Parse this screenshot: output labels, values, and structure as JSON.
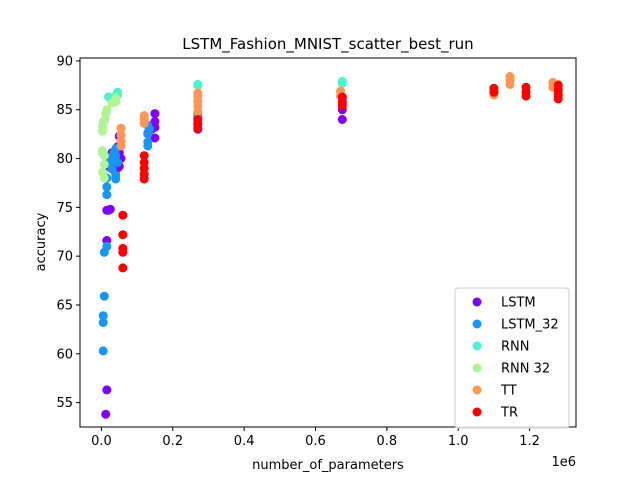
{
  "chart_data": {
    "type": "scatter",
    "title": "LSTM_Fashion_MNIST_scatter_best_run",
    "xlabel": "number_of_parameters",
    "ylabel": "accuracy",
    "x_offset_label": "1e6",
    "xlim": [
      -0.06,
      1.33
    ],
    "ylim": [
      52.5,
      90.3
    ],
    "x_ticks": [
      0.0,
      0.2,
      0.4,
      0.6,
      0.8,
      1.0,
      1.2
    ],
    "x_tick_labels": [
      "0.0",
      "0.2",
      "0.4",
      "0.6",
      "0.8",
      "1.0",
      "1.2"
    ],
    "y_ticks": [
      55,
      60,
      65,
      70,
      75,
      80,
      85,
      90
    ],
    "y_tick_labels": [
      "55",
      "60",
      "65",
      "70",
      "75",
      "80",
      "85",
      "90"
    ],
    "grid": false,
    "legend_position": "lower-right",
    "series": [
      {
        "name": "LSTM",
        "color": "#8000ff",
        "points": [
          [
            0.012,
            53.8
          ],
          [
            0.015,
            56.3
          ],
          [
            0.015,
            71.6
          ],
          [
            0.015,
            74.7
          ],
          [
            0.02,
            74.7
          ],
          [
            0.025,
            74.8
          ],
          [
            0.02,
            79.2
          ],
          [
            0.025,
            79.6
          ],
          [
            0.03,
            80.2
          ],
          [
            0.03,
            80.6
          ],
          [
            0.035,
            80.0
          ],
          [
            0.04,
            79.4
          ],
          [
            0.045,
            79.0
          ],
          [
            0.05,
            79.2
          ],
          [
            0.05,
            80.6
          ],
          [
            0.045,
            81.2
          ],
          [
            0.05,
            82.3
          ],
          [
            0.055,
            80.0
          ],
          [
            0.15,
            82.1
          ],
          [
            0.15,
            83.2
          ],
          [
            0.15,
            83.8
          ],
          [
            0.15,
            84.6
          ],
          [
            0.13,
            82.6
          ],
          [
            0.14,
            83.0
          ],
          [
            0.27,
            83.0
          ],
          [
            0.27,
            83.5
          ],
          [
            0.27,
            84.1
          ],
          [
            0.27,
            84.6
          ],
          [
            0.675,
            84.0
          ],
          [
            0.675,
            85.0
          ],
          [
            0.675,
            85.6
          ],
          [
            0.675,
            86.2
          ]
        ]
      },
      {
        "name": "LSTM_32",
        "color": "#1996f3",
        "points": [
          [
            0.005,
            60.3
          ],
          [
            0.005,
            63.2
          ],
          [
            0.005,
            63.9
          ],
          [
            0.008,
            65.9
          ],
          [
            0.008,
            70.4
          ],
          [
            0.015,
            71.0
          ],
          [
            0.015,
            76.3
          ],
          [
            0.015,
            77.1
          ],
          [
            0.015,
            78.0
          ],
          [
            0.02,
            79.5
          ],
          [
            0.025,
            80.1
          ],
          [
            0.03,
            79.6
          ],
          [
            0.03,
            78.9
          ],
          [
            0.04,
            77.9
          ],
          [
            0.04,
            78.3
          ],
          [
            0.045,
            79.6
          ],
          [
            0.04,
            80.3
          ],
          [
            0.04,
            81.0
          ],
          [
            0.035,
            80.6
          ],
          [
            0.13,
            81.3
          ],
          [
            0.13,
            81.7
          ],
          [
            0.13,
            82.5
          ],
          [
            0.135,
            83.0
          ],
          [
            0.13,
            83.4
          ],
          [
            0.27,
            83.6
          ],
          [
            0.27,
            84.3
          ]
        ]
      },
      {
        "name": "RNN",
        "color": "#4df3ce",
        "points": [
          [
            0.02,
            86.3
          ],
          [
            0.03,
            86.0
          ],
          [
            0.04,
            86.4
          ],
          [
            0.045,
            86.8
          ],
          [
            0.045,
            86.5
          ],
          [
            0.035,
            85.8
          ],
          [
            0.27,
            87.5
          ],
          [
            0.27,
            87.6
          ],
          [
            0.675,
            87.7
          ],
          [
            0.675,
            87.9
          ]
        ]
      },
      {
        "name": "RNN 32",
        "color": "#b2f396",
        "points": [
          [
            0.003,
            78.6
          ],
          [
            0.003,
            80.6
          ],
          [
            0.003,
            80.8
          ],
          [
            0.003,
            82.8
          ],
          [
            0.003,
            83.3
          ],
          [
            0.005,
            83.8
          ],
          [
            0.008,
            78.0
          ],
          [
            0.008,
            79.4
          ],
          [
            0.008,
            80.3
          ],
          [
            0.01,
            84.0
          ],
          [
            0.012,
            84.6
          ],
          [
            0.015,
            85.0
          ],
          [
            0.03,
            85.7
          ],
          [
            0.04,
            85.8
          ],
          [
            0.04,
            86.2
          ]
        ]
      },
      {
        "name": "TT",
        "color": "#ff9653",
        "points": [
          [
            0.055,
            81.3
          ],
          [
            0.055,
            81.8
          ],
          [
            0.055,
            82.4
          ],
          [
            0.055,
            83.1
          ],
          [
            0.12,
            83.6
          ],
          [
            0.12,
            84.0
          ],
          [
            0.12,
            84.4
          ],
          [
            0.27,
            84.8
          ],
          [
            0.27,
            85.4
          ],
          [
            0.27,
            85.9
          ],
          [
            0.27,
            86.4
          ],
          [
            0.27,
            86.7
          ],
          [
            0.67,
            86.4
          ],
          [
            0.67,
            86.9
          ],
          [
            1.1,
            86.5
          ],
          [
            1.1,
            86.8
          ],
          [
            1.1,
            87.0
          ],
          [
            1.145,
            87.6
          ],
          [
            1.145,
            88.0
          ],
          [
            1.145,
            88.4
          ],
          [
            1.265,
            87.3
          ],
          [
            1.265,
            87.8
          ],
          [
            1.28,
            86.7
          ],
          [
            1.28,
            87.2
          ],
          [
            1.28,
            87.6
          ]
        ]
      },
      {
        "name": "TR",
        "color": "#ff0000",
        "points": [
          [
            0.06,
            68.8
          ],
          [
            0.06,
            70.4
          ],
          [
            0.06,
            70.8
          ],
          [
            0.06,
            72.2
          ],
          [
            0.06,
            74.2
          ],
          [
            0.12,
            77.9
          ],
          [
            0.12,
            78.4
          ],
          [
            0.12,
            79.0
          ],
          [
            0.12,
            79.6
          ],
          [
            0.12,
            80.3
          ],
          [
            0.27,
            83.1
          ],
          [
            0.27,
            83.6
          ],
          [
            0.27,
            84.0
          ],
          [
            0.675,
            85.4
          ],
          [
            0.675,
            85.8
          ],
          [
            0.675,
            86.3
          ],
          [
            1.1,
            86.8
          ],
          [
            1.1,
            87.2
          ],
          [
            1.19,
            86.4
          ],
          [
            1.19,
            86.8
          ],
          [
            1.19,
            87.3
          ],
          [
            1.28,
            86.1
          ],
          [
            1.28,
            86.5
          ],
          [
            1.28,
            87.0
          ],
          [
            1.28,
            87.5
          ]
        ]
      }
    ]
  }
}
